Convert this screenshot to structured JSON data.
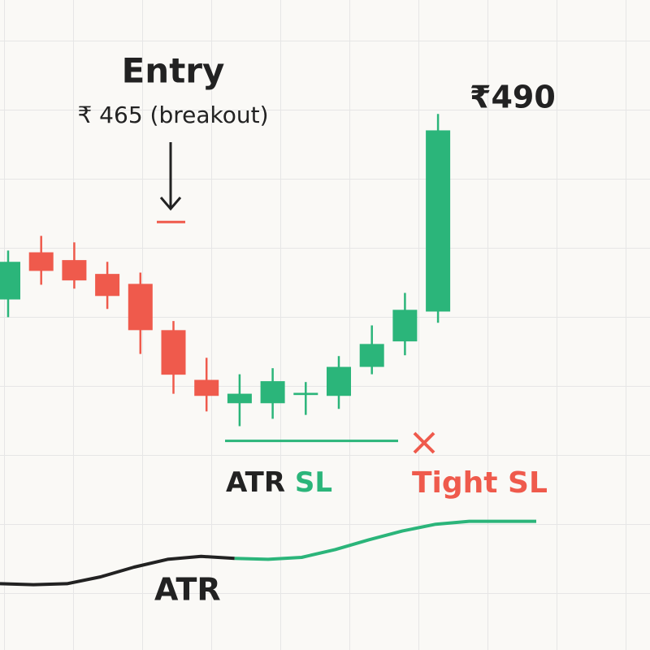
{
  "chart_data": {
    "type": "candlestick",
    "ylim": [
      410,
      500
    ],
    "up_color": "#2bb57a",
    "down_color": "#ef5a4c",
    "open": [
      447.1,
      458.0,
      456.2,
      453.0,
      450.7,
      440.0,
      428.5,
      423.1,
      423.1,
      425.0,
      424.8,
      431.5,
      437.4,
      444.3
    ],
    "high": [
      458.4,
      461.8,
      460.3,
      455.8,
      453.3,
      442.1,
      433.6,
      429.8,
      431.2,
      428.0,
      434.0,
      441.1,
      448.6,
      490.0
    ],
    "low": [
      443.0,
      450.5,
      449.6,
      444.9,
      434.5,
      425.3,
      421.2,
      417.8,
      419.5,
      420.4,
      421.8,
      429.8,
      434.2,
      441.7
    ],
    "close": [
      455.8,
      453.7,
      451.5,
      447.9,
      440.0,
      429.7,
      424.8,
      425.3,
      428.2,
      425.5,
      431.5,
      436.8,
      444.7,
      486.2
    ],
    "entry": {
      "title": "Entry",
      "value": 465,
      "label": "₹ 465 (breakout)"
    },
    "target_label": "₹490",
    "atr_sl": {
      "value": 414.4,
      "label": "ATR",
      "label_sl": "SL"
    },
    "tight_sl_label": "Tight SL",
    "atr": {
      "label": "ATR",
      "ylim": [
        0,
        10
      ],
      "series": [
        {
          "color": "#222222",
          "values": [
            1.8,
            1.7,
            1.8,
            2.5,
            3.5,
            4.3,
            4.6,
            4.4,
            null,
            null,
            null,
            null,
            null,
            null,
            null,
            null,
            null
          ]
        },
        {
          "color": "#2bb57a",
          "values": [
            null,
            null,
            null,
            null,
            null,
            null,
            null,
            4.4,
            4.3,
            4.5,
            5.3,
            6.3,
            7.2,
            7.9,
            8.2,
            8.2,
            8.2
          ]
        }
      ]
    }
  }
}
